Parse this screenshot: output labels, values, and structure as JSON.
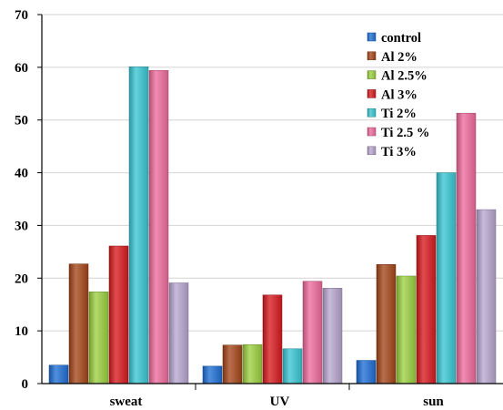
{
  "chart_data": {
    "type": "bar",
    "title": "",
    "xlabel": "",
    "ylabel": "",
    "ylim": [
      0,
      70
    ],
    "yticks": [
      0,
      10,
      20,
      30,
      40,
      50,
      60,
      70
    ],
    "grid": true,
    "legend_position": "top-right",
    "categories": [
      "sweat",
      "UV",
      "sun"
    ],
    "series": [
      {
        "name": "control",
        "color": "#1f6fd6",
        "values": [
          3.5,
          3.3,
          4.4
        ]
      },
      {
        "name": "Al 2%",
        "color": "#a5471a",
        "values": [
          22.7,
          7.3,
          22.6
        ]
      },
      {
        "name": "Al 2.5%",
        "color": "#9cd141",
        "values": [
          17.4,
          7.4,
          20.4
        ]
      },
      {
        "name": "Al 3%",
        "color": "#d71a1f",
        "values": [
          26.1,
          16.8,
          28.1
        ]
      },
      {
        "name": "Ti 2%",
        "color": "#3ac7d4",
        "values": [
          60.1,
          6.6,
          40.0
        ]
      },
      {
        "name": "Ti 2.5 %",
        "color": "#ef6b9c",
        "values": [
          59.4,
          19.4,
          51.3
        ]
      },
      {
        "name": "Ti 3%",
        "color": "#b9a6cf",
        "values": [
          19.1,
          18.1,
          33.0
        ]
      }
    ]
  }
}
